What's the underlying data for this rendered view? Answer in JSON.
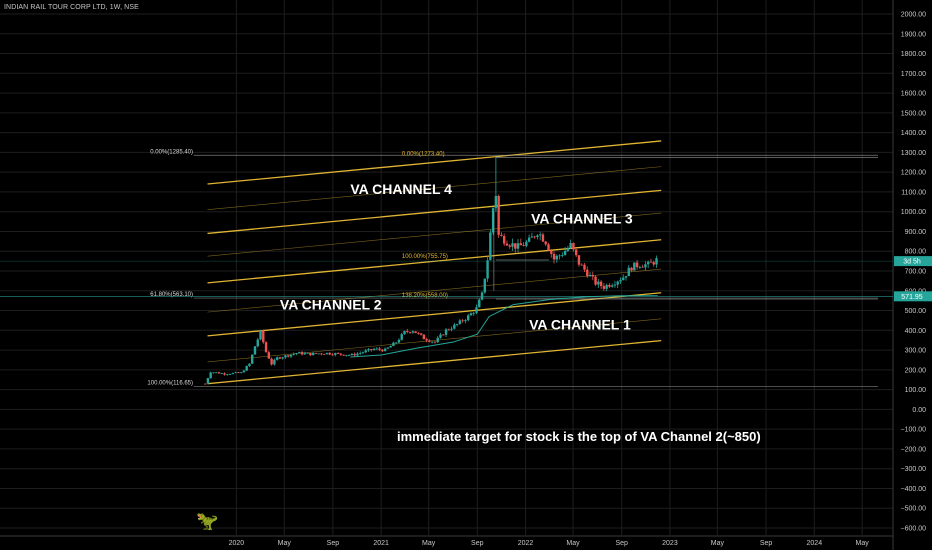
{
  "header": {
    "symbol_title": "INDIAN RAIL TOUR CORP LTD, 1W, NSE"
  },
  "colors": {
    "background": "#000000",
    "grid": "#1e1e1e",
    "channel": "#e0b433",
    "fib": "#9a9a9a",
    "up": "#26a69a",
    "down": "#ef5350",
    "ma": "#26a69a",
    "price_tag": "#26a69a"
  },
  "chart_data": {
    "type": "candlestick",
    "title": "INDIAN RAIL TOUR CORP LTD, 1W, NSE",
    "y_axis": {
      "min": -600,
      "max": 2000,
      "step": 100,
      "side": "right",
      "ticks": [
        "2000.00",
        "1900.00",
        "1800.00",
        "1700.00",
        "1600.00",
        "1500.00",
        "1400.00",
        "1300.00",
        "1200.00",
        "1100.00",
        "1000.00",
        "900.00",
        "800.00",
        "700.00",
        "600.00",
        "500.00",
        "400.00",
        "300.00",
        "200.00",
        "100.00",
        "0.00",
        "−100.00",
        "−200.00",
        "−300.00",
        "−400.00",
        "−500.00",
        "−600.00"
      ]
    },
    "x_axis": {
      "min": "2019-10-01",
      "max": "2024-06-10",
      "ticks": [
        {
          "label": "2020",
          "date": "2020-01-01"
        },
        {
          "label": "May",
          "date": "2020-05-01"
        },
        {
          "label": "Sep",
          "date": "2020-09-01"
        },
        {
          "label": "2021",
          "date": "2021-01-01"
        },
        {
          "label": "May",
          "date": "2021-05-01"
        },
        {
          "label": "Sep",
          "date": "2021-09-01"
        },
        {
          "label": "2022",
          "date": "2022-01-01"
        },
        {
          "label": "May",
          "date": "2022-05-01"
        },
        {
          "label": "Sep",
          "date": "2022-09-01"
        },
        {
          "label": "2023",
          "date": "2023-01-01"
        },
        {
          "label": "May",
          "date": "2023-05-01"
        },
        {
          "label": "Sep",
          "date": "2023-09-01"
        },
        {
          "label": "2024",
          "date": "2024-01-01"
        },
        {
          "label": "May",
          "date": "2024-05-01"
        }
      ]
    },
    "price_path": [
      [
        "2019-10-14",
        130
      ],
      [
        "2019-10-28",
        190
      ],
      [
        "2019-12-02",
        180
      ],
      [
        "2020-01-13",
        185
      ],
      [
        "2020-02-03",
        230
      ],
      [
        "2020-02-17",
        320
      ],
      [
        "2020-03-02",
        390
      ],
      [
        "2020-03-16",
        290
      ],
      [
        "2020-03-30",
        230
      ],
      [
        "2020-04-13",
        260
      ],
      [
        "2020-05-04",
        270
      ],
      [
        "2020-06-01",
        285
      ],
      [
        "2020-07-06",
        280
      ],
      [
        "2020-08-10",
        285
      ],
      [
        "2020-09-14",
        280
      ],
      [
        "2020-10-19",
        275
      ],
      [
        "2020-11-16",
        290
      ],
      [
        "2020-12-14",
        305
      ],
      [
        "2021-01-11",
        300
      ],
      [
        "2021-02-08",
        340
      ],
      [
        "2021-03-01",
        390
      ],
      [
        "2021-03-22",
        400
      ],
      [
        "2021-04-19",
        360
      ],
      [
        "2021-05-17",
        340
      ],
      [
        "2021-06-14",
        400
      ],
      [
        "2021-07-12",
        430
      ],
      [
        "2021-08-09",
        470
      ],
      [
        "2021-08-30",
        510
      ],
      [
        "2021-09-13",
        580
      ],
      [
        "2021-09-27",
        760
      ],
      [
        "2021-10-11",
        1020
      ],
      [
        "2021-10-18",
        1090
      ],
      [
        "2021-10-25",
        880
      ],
      [
        "2021-11-08",
        860
      ],
      [
        "2021-11-22",
        840
      ],
      [
        "2021-12-13",
        820
      ],
      [
        "2022-01-10",
        850
      ],
      [
        "2022-01-31",
        900
      ],
      [
        "2022-02-21",
        850
      ],
      [
        "2022-03-14",
        760
      ],
      [
        "2022-04-04",
        790
      ],
      [
        "2022-04-25",
        830
      ],
      [
        "2022-05-16",
        740
      ],
      [
        "2022-06-06",
        690
      ],
      [
        "2022-06-27",
        640
      ],
      [
        "2022-07-18",
        620
      ],
      [
        "2022-08-08",
        640
      ],
      [
        "2022-09-05",
        670
      ],
      [
        "2022-09-26",
        720
      ],
      [
        "2022-10-17",
        735
      ],
      [
        "2022-11-07",
        730
      ],
      [
        "2022-11-28",
        755
      ]
    ],
    "spike_high": {
      "date": "2021-10-18",
      "value": 1285
    },
    "moving_average": [
      [
        "2020-10-15",
        265
      ],
      [
        "2021-01-01",
        275
      ],
      [
        "2021-04-01",
        310
      ],
      [
        "2021-07-01",
        340
      ],
      [
        "2021-09-01",
        380
      ],
      [
        "2021-10-01",
        470
      ],
      [
        "2021-12-01",
        530
      ],
      [
        "2022-03-01",
        555
      ],
      [
        "2022-06-01",
        570
      ],
      [
        "2022-09-01",
        575
      ],
      [
        "2022-12-01",
        575
      ]
    ],
    "channels": [
      {
        "start": [
          "2019-10-20",
          130
        ],
        "end": [
          "2022-12-10",
          348
        ],
        "weight": "bold"
      },
      {
        "start": [
          "2019-10-20",
          240
        ],
        "end": [
          "2022-12-10",
          458
        ],
        "weight": "thin"
      },
      {
        "start": [
          "2019-10-20",
          372
        ],
        "end": [
          "2022-12-10",
          590
        ],
        "weight": "bold"
      },
      {
        "start": [
          "2019-10-20",
          492
        ],
        "end": [
          "2022-12-10",
          710
        ],
        "weight": "thin"
      },
      {
        "start": [
          "2019-10-20",
          640
        ],
        "end": [
          "2022-12-10",
          858
        ],
        "weight": "bold"
      },
      {
        "start": [
          "2019-10-20",
          775
        ],
        "end": [
          "2022-12-10",
          993
        ],
        "weight": "thin"
      },
      {
        "start": [
          "2019-10-20",
          890
        ],
        "end": [
          "2022-12-10",
          1108
        ],
        "weight": "bold"
      },
      {
        "start": [
          "2019-10-20",
          1010
        ],
        "end": [
          "2022-12-10",
          1228
        ],
        "weight": "thin"
      },
      {
        "start": [
          "2019-10-20",
          1140
        ],
        "end": [
          "2022-12-10",
          1358
        ],
        "weight": "bold"
      }
    ],
    "fib_levels": [
      {
        "label": "0.00%(1285.40)",
        "value": 1285.4,
        "from": "2019-09-15",
        "to": "2024-06-10"
      },
      {
        "label": "61.80%(563.10)",
        "value": 563.1,
        "from": "2019-09-15",
        "to": "2024-06-10"
      },
      {
        "label": "100.00%(116.65)",
        "value": 116.65,
        "from": "2019-09-15",
        "to": "2024-06-10"
      },
      {
        "label": "0.00%(1273.40)",
        "value": 1273.4,
        "from": "2021-10-18",
        "to": "2024-06-10"
      },
      {
        "label": "100.00%(755.75)",
        "value": 755.75,
        "from": "2021-10-18",
        "to": "2022-03-01"
      },
      {
        "label": "138.20%(558.00)",
        "value": 558.0,
        "from": "2021-10-18",
        "to": "2024-06-10"
      }
    ],
    "price_tags": [
      {
        "label": "3d 5h",
        "value": 750
      },
      {
        "label": "571.95",
        "value": 571.95
      }
    ],
    "annotations": [
      {
        "text": "VA CHANNEL 4",
        "date": "2020-10-15",
        "value": 1090
      },
      {
        "text": "VA CHANNEL 3",
        "date": "2022-01-15",
        "value": 940
      },
      {
        "text": "VA CHANNEL 2",
        "date": "2020-04-20",
        "value": 505
      },
      {
        "text": "VA CHANNEL 1",
        "date": "2022-01-10",
        "value": 405
      },
      {
        "text": "immediate target for stock is the top of VA Channel 2(~850)",
        "date": "2021-02-10",
        "value": -160
      }
    ]
  }
}
